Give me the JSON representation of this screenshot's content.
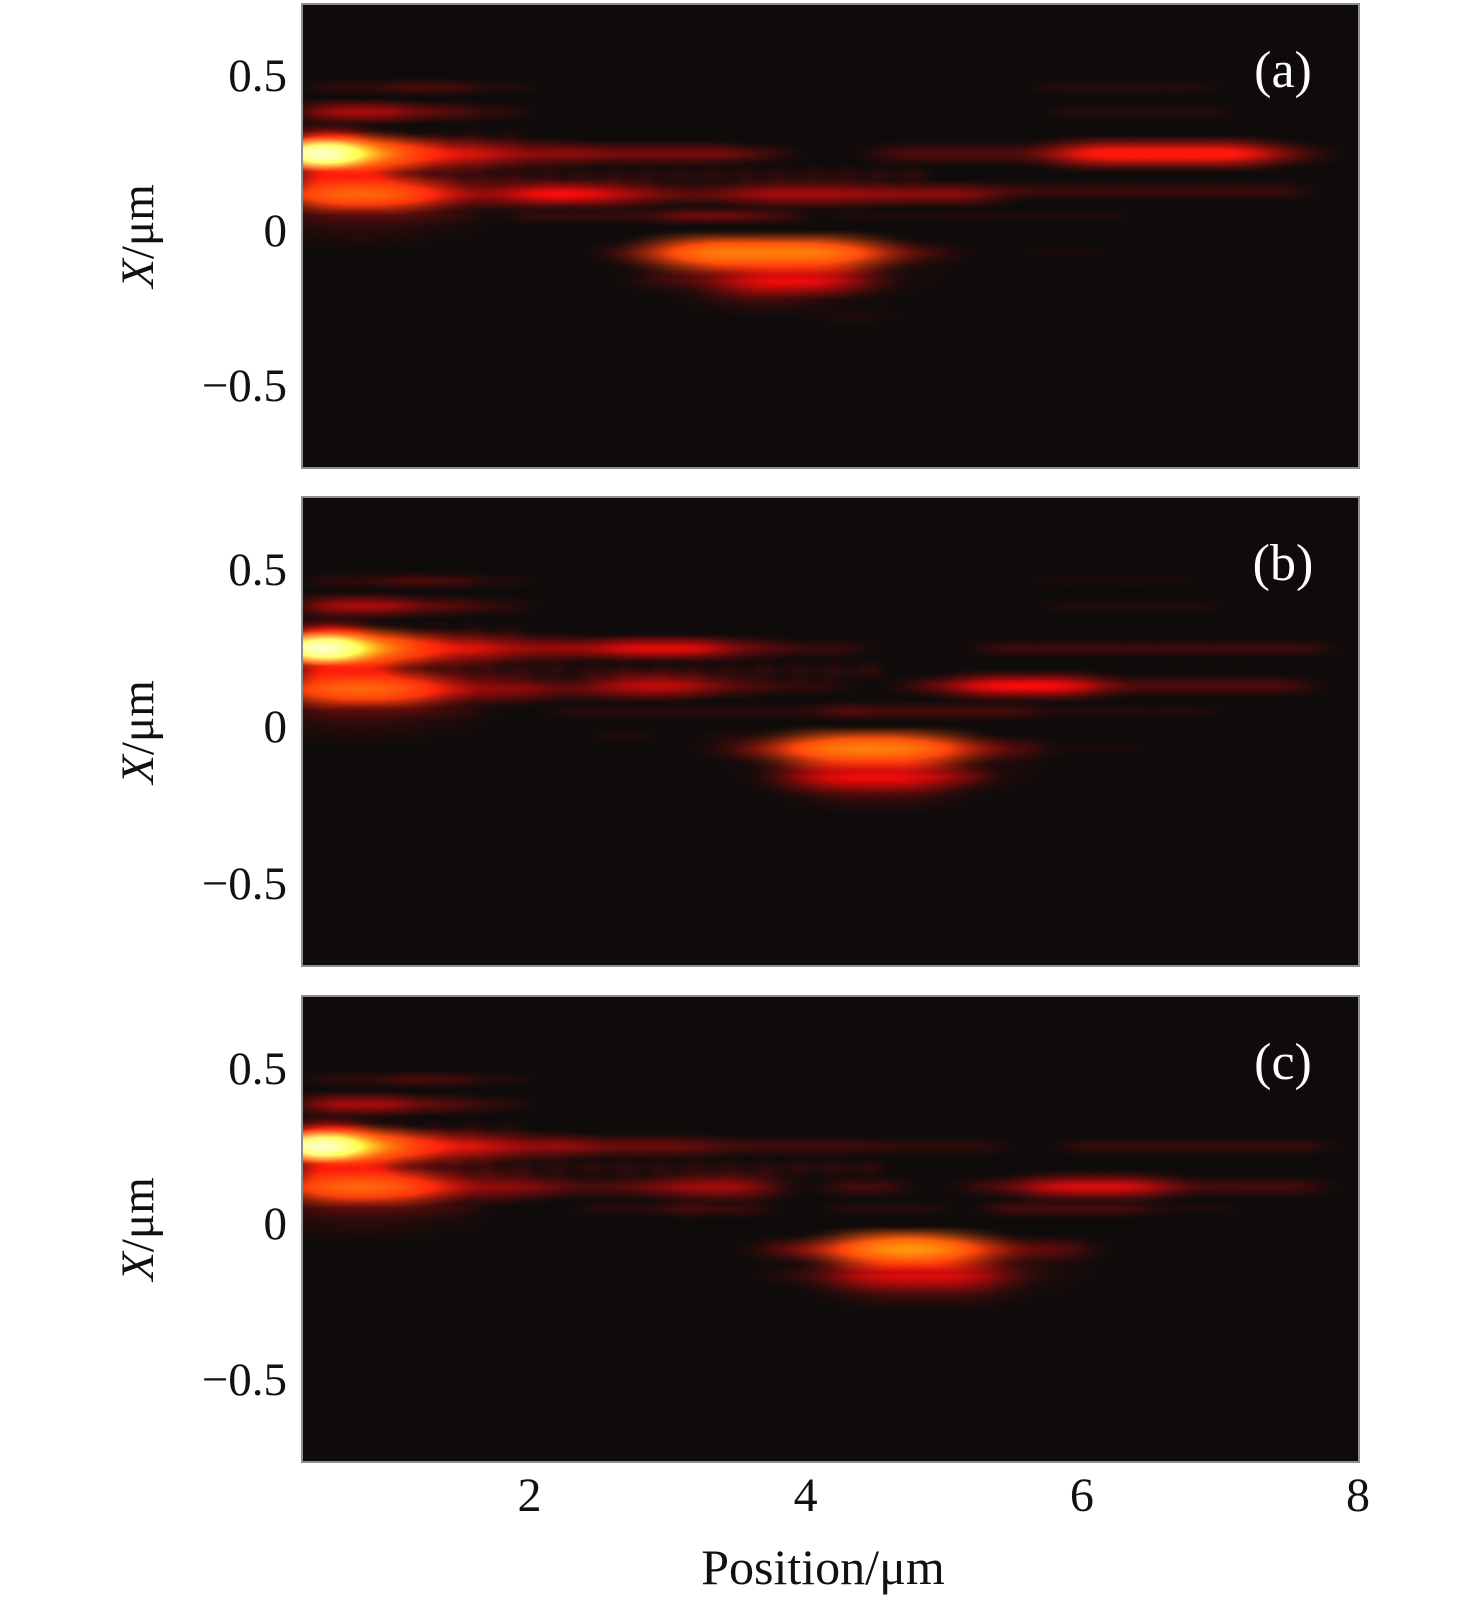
{
  "figure": {
    "x_axis_label": "Position/μm",
    "y_axis_label_symbol": "X",
    "y_axis_label_rest": "/μm",
    "x_tick_labels": [
      "2",
      "4",
      "6",
      "8"
    ],
    "y_tick_labels": [
      "0.5",
      "0",
      "−0.5"
    ],
    "panel_labels": [
      "(a)",
      "(b)",
      "(c)"
    ]
  },
  "colors": {
    "background": "#ffffff",
    "panel_background": "#0f0b0b",
    "panel_border": "#8e8e8e",
    "text": "#111111",
    "panel_label_text": "#ffffff",
    "streak_base": "#cc1a1a",
    "streak_hot": "#ffd28f"
  },
  "chart_data": {
    "type": "heatmap",
    "title": "",
    "xlabel": "Position/μm",
    "ylabel": "X/μm",
    "xlim": [
      0.36,
      8.0
    ],
    "ylim": [
      -0.76,
      0.73
    ],
    "x_ticks": [
      2,
      4,
      6,
      8
    ],
    "y_ticks": [
      0.5,
      0,
      -0.5
    ],
    "grid": false,
    "legend": false,
    "colormap": "black-red-orange-white",
    "streak_format": [
      "x_start_um",
      "x_end_um",
      "X_um",
      "half_thickness_um",
      "intensity_0_to_1.3"
    ],
    "dot_row_format": [
      "x_start_um",
      "x_end_um",
      "X_um",
      "period_um",
      "intensity"
    ],
    "panels": [
      {
        "label": "(a)",
        "streaks": [
          [
            0.38,
            0.62,
            0.25,
            0.024,
            1.3
          ],
          [
            0.36,
            1.0,
            0.25,
            0.032,
            0.95
          ],
          [
            0.95,
            1.7,
            0.25,
            0.028,
            0.6
          ],
          [
            1.65,
            2.3,
            0.25,
            0.024,
            0.45
          ],
          [
            0.36,
            1.2,
            0.12,
            0.03,
            0.8
          ],
          [
            1.15,
            2.0,
            0.12,
            0.026,
            0.45
          ],
          [
            1.95,
            2.5,
            0.12,
            0.02,
            0.3
          ],
          [
            0.36,
            1.35,
            0.18,
            0.055,
            0.3
          ],
          [
            0.36,
            1.25,
            0.055,
            0.05,
            0.28
          ],
          [
            0.42,
            0.95,
            0.18,
            0.02,
            0.5
          ],
          [
            0.36,
            0.8,
            0.305,
            0.02,
            0.55
          ],
          [
            0.42,
            1.05,
            0.385,
            0.02,
            0.5
          ],
          [
            1.0,
            1.5,
            0.385,
            0.018,
            0.35
          ],
          [
            1.5,
            1.95,
            0.385,
            0.016,
            0.2
          ],
          [
            0.45,
            1.1,
            0.465,
            0.014,
            0.2
          ],
          [
            1.05,
            1.55,
            0.465,
            0.014,
            0.28
          ],
          [
            1.55,
            2.0,
            0.465,
            0.013,
            0.15
          ],
          [
            0.4,
            1.6,
            0.05,
            0.014,
            0.18
          ],
          [
            2.25,
            3.45,
            0.25,
            0.02,
            0.4
          ],
          [
            3.4,
            3.85,
            0.25,
            0.017,
            0.28
          ],
          [
            2.0,
            2.8,
            0.12,
            0.024,
            0.55
          ],
          [
            2.8,
            3.6,
            0.12,
            0.02,
            0.35
          ],
          [
            3.6,
            4.4,
            0.12,
            0.023,
            0.5
          ],
          [
            4.45,
            5.35,
            0.12,
            0.021,
            0.45
          ],
          [
            1.9,
            3.6,
            0.05,
            0.014,
            0.22
          ],
          [
            3.0,
            3.95,
            0.05,
            0.015,
            0.28
          ],
          [
            4.2,
            6.3,
            0.05,
            0.012,
            0.13
          ],
          [
            4.55,
            7.7,
            0.25,
            0.019,
            0.3
          ],
          [
            5.9,
            7.35,
            0.25,
            0.027,
            0.6
          ],
          [
            5.4,
            7.6,
            0.13,
            0.016,
            0.25
          ],
          [
            5.7,
            6.95,
            0.465,
            0.013,
            0.16
          ],
          [
            5.8,
            7.05,
            0.385,
            0.013,
            0.16
          ],
          [
            2.9,
            3.75,
            -0.04,
            0.012,
            0.12
          ],
          [
            2.6,
            3.1,
            -0.07,
            0.02,
            0.28
          ],
          [
            3.05,
            4.45,
            -0.07,
            0.032,
            0.85
          ],
          [
            4.4,
            5.0,
            -0.07,
            0.02,
            0.3
          ],
          [
            3.2,
            4.5,
            -0.125,
            0.05,
            0.3
          ],
          [
            2.85,
            3.35,
            -0.155,
            0.018,
            0.22
          ],
          [
            3.45,
            4.4,
            -0.16,
            0.026,
            0.55
          ],
          [
            3.4,
            4.05,
            -0.215,
            0.028,
            0.25
          ],
          [
            4.1,
            4.6,
            -0.27,
            0.018,
            0.12
          ],
          [
            5.6,
            6.15,
            -0.07,
            0.013,
            0.1
          ]
        ],
        "dot_rows": [
          [
            0.45,
            4.95,
            0.18,
            0.24,
            0.4
          ],
          [
            1.05,
            2.0,
            0.305,
            0.27,
            0.3
          ]
        ]
      },
      {
        "label": "(b)",
        "streaks": [
          [
            0.38,
            0.62,
            0.25,
            0.024,
            1.3
          ],
          [
            0.36,
            1.0,
            0.25,
            0.032,
            0.95
          ],
          [
            0.95,
            1.7,
            0.25,
            0.028,
            0.6
          ],
          [
            1.65,
            2.3,
            0.25,
            0.024,
            0.45
          ],
          [
            0.36,
            1.2,
            0.12,
            0.03,
            0.8
          ],
          [
            1.15,
            2.0,
            0.12,
            0.026,
            0.45
          ],
          [
            1.95,
            2.5,
            0.12,
            0.02,
            0.3
          ],
          [
            0.36,
            1.35,
            0.18,
            0.055,
            0.3
          ],
          [
            0.36,
            1.25,
            0.055,
            0.05,
            0.28
          ],
          [
            0.42,
            0.95,
            0.18,
            0.02,
            0.5
          ],
          [
            0.36,
            0.8,
            0.305,
            0.02,
            0.55
          ],
          [
            0.42,
            1.05,
            0.385,
            0.02,
            0.5
          ],
          [
            1.0,
            1.5,
            0.385,
            0.018,
            0.35
          ],
          [
            1.5,
            1.95,
            0.385,
            0.016,
            0.2
          ],
          [
            0.45,
            1.1,
            0.465,
            0.014,
            0.2
          ],
          [
            1.05,
            1.55,
            0.465,
            0.014,
            0.28
          ],
          [
            1.55,
            2.0,
            0.465,
            0.013,
            0.15
          ],
          [
            0.4,
            1.6,
            0.05,
            0.014,
            0.18
          ],
          [
            2.2,
            3.7,
            0.25,
            0.02,
            0.38
          ],
          [
            2.55,
            3.35,
            0.25,
            0.021,
            0.45
          ],
          [
            3.7,
            4.4,
            0.25,
            0.016,
            0.22
          ],
          [
            5.3,
            7.75,
            0.25,
            0.015,
            0.25
          ],
          [
            2.55,
            3.15,
            0.13,
            0.024,
            0.55
          ],
          [
            3.1,
            3.6,
            0.13,
            0.02,
            0.35
          ],
          [
            3.6,
            4.25,
            0.13,
            0.016,
            0.2
          ],
          [
            4.75,
            7.6,
            0.13,
            0.017,
            0.3
          ],
          [
            5.15,
            6.1,
            0.13,
            0.024,
            0.55
          ],
          [
            2.2,
            4.4,
            0.05,
            0.014,
            0.18
          ],
          [
            4.2,
            5.6,
            0.05,
            0.016,
            0.28
          ],
          [
            5.6,
            6.95,
            0.05,
            0.012,
            0.14
          ],
          [
            2.5,
            2.9,
            -0.03,
            0.012,
            0.12
          ],
          [
            3.3,
            3.6,
            -0.03,
            0.012,
            0.12
          ],
          [
            4.3,
            4.7,
            -0.03,
            0.012,
            0.12
          ],
          [
            5.75,
            7.0,
            0.385,
            0.012,
            0.13
          ],
          [
            5.7,
            6.8,
            0.465,
            0.012,
            0.11
          ],
          [
            3.4,
            4.0,
            -0.07,
            0.02,
            0.3
          ],
          [
            3.95,
            5.0,
            -0.07,
            0.032,
            0.85
          ],
          [
            4.95,
            5.65,
            -0.07,
            0.02,
            0.32
          ],
          [
            4.0,
            5.15,
            -0.125,
            0.05,
            0.3
          ],
          [
            3.95,
            5.05,
            -0.16,
            0.026,
            0.55
          ],
          [
            5.0,
            5.35,
            -0.16,
            0.016,
            0.25
          ],
          [
            4.1,
            4.95,
            -0.215,
            0.028,
            0.25
          ],
          [
            5.9,
            6.45,
            -0.07,
            0.012,
            0.09
          ]
        ],
        "dot_rows": [
          [
            0.45,
            4.6,
            0.18,
            0.25,
            0.4
          ],
          [
            1.05,
            2.0,
            0.305,
            0.27,
            0.3
          ]
        ]
      },
      {
        "label": "(c)",
        "streaks": [
          [
            0.38,
            0.62,
            0.25,
            0.024,
            1.3
          ],
          [
            0.36,
            1.0,
            0.25,
            0.032,
            0.95
          ],
          [
            0.95,
            1.7,
            0.25,
            0.028,
            0.6
          ],
          [
            1.65,
            2.3,
            0.25,
            0.024,
            0.45
          ],
          [
            0.36,
            1.2,
            0.12,
            0.03,
            0.8
          ],
          [
            1.15,
            2.0,
            0.12,
            0.026,
            0.45
          ],
          [
            1.95,
            2.5,
            0.12,
            0.02,
            0.3
          ],
          [
            0.36,
            1.35,
            0.18,
            0.055,
            0.3
          ],
          [
            0.36,
            1.25,
            0.055,
            0.05,
            0.28
          ],
          [
            0.42,
            0.95,
            0.18,
            0.02,
            0.5
          ],
          [
            0.36,
            0.8,
            0.305,
            0.02,
            0.55
          ],
          [
            0.42,
            1.05,
            0.385,
            0.02,
            0.5
          ],
          [
            1.0,
            1.5,
            0.385,
            0.018,
            0.35
          ],
          [
            1.5,
            1.95,
            0.385,
            0.016,
            0.2
          ],
          [
            0.45,
            1.1,
            0.465,
            0.014,
            0.2
          ],
          [
            1.05,
            1.55,
            0.465,
            0.014,
            0.28
          ],
          [
            1.55,
            2.0,
            0.465,
            0.013,
            0.15
          ],
          [
            0.4,
            1.6,
            0.05,
            0.014,
            0.18
          ],
          [
            2.2,
            3.3,
            0.25,
            0.02,
            0.38
          ],
          [
            3.35,
            4.45,
            0.25,
            0.017,
            0.26
          ],
          [
            4.5,
            5.4,
            0.25,
            0.015,
            0.2
          ],
          [
            5.9,
            7.75,
            0.25,
            0.014,
            0.22
          ],
          [
            2.6,
            3.1,
            0.12,
            0.02,
            0.35
          ],
          [
            3.1,
            3.75,
            0.12,
            0.024,
            0.5
          ],
          [
            4.2,
            4.7,
            0.12,
            0.017,
            0.28
          ],
          [
            5.2,
            7.7,
            0.12,
            0.017,
            0.28
          ],
          [
            5.65,
            6.6,
            0.12,
            0.024,
            0.5
          ],
          [
            2.4,
            3.2,
            0.05,
            0.014,
            0.18
          ],
          [
            3.05,
            3.7,
            0.05,
            0.015,
            0.24
          ],
          [
            4.2,
            5.0,
            0.05,
            0.013,
            0.16
          ],
          [
            5.35,
            6.45,
            0.05,
            0.015,
            0.28
          ],
          [
            6.45,
            7.1,
            0.05,
            0.012,
            0.13
          ],
          [
            4.25,
            4.9,
            -0.03,
            0.012,
            0.12
          ],
          [
            3.75,
            4.4,
            -0.08,
            0.02,
            0.38
          ],
          [
            4.35,
            5.2,
            -0.08,
            0.032,
            0.9
          ],
          [
            5.15,
            6.0,
            -0.08,
            0.02,
            0.32
          ],
          [
            4.3,
            5.55,
            -0.135,
            0.05,
            0.3
          ],
          [
            3.75,
            4.1,
            -0.165,
            0.014,
            0.15
          ],
          [
            4.25,
            5.4,
            -0.165,
            0.026,
            0.5
          ],
          [
            4.35,
            5.35,
            -0.22,
            0.028,
            0.25
          ]
        ],
        "dot_rows": [
          [
            0.45,
            4.6,
            0.18,
            0.25,
            0.4
          ],
          [
            1.05,
            2.0,
            0.305,
            0.27,
            0.3
          ]
        ]
      }
    ]
  }
}
